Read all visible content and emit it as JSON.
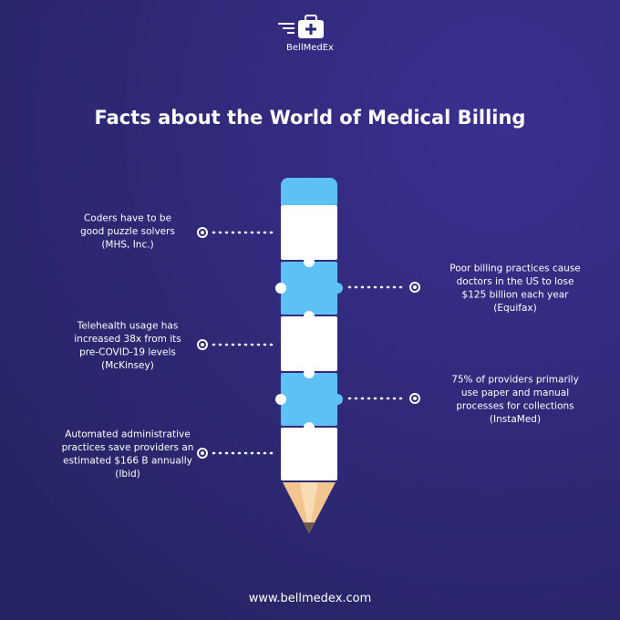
{
  "logo": {
    "name": "BellMedEx"
  },
  "title": "Facts about the World of Medical Billing",
  "facts": [
    {
      "side": "left",
      "lines": [
        "Coders have to be",
        "good puzzle solvers",
        "(MHS, Inc.)"
      ]
    },
    {
      "side": "right",
      "lines": [
        "Poor billing practices cause",
        "doctors in the US to lose",
        "$125 billion each year",
        "(Equifax)"
      ]
    },
    {
      "side": "left",
      "lines": [
        "Telehealth usage has",
        "increased 38x from its",
        "pre-COVID-19 levels",
        "(McKinsey)"
      ]
    },
    {
      "side": "right",
      "lines": [
        "75% of providers primarily",
        "use paper and manual",
        "processes for collections",
        "(InstaMed)"
      ]
    },
    {
      "side": "left",
      "lines": [
        "Automated administrative",
        "practices save providers an",
        "estimated $166 B annually",
        "(Ibid)"
      ]
    }
  ],
  "footer": {
    "url": "www.bellmedex.com"
  }
}
